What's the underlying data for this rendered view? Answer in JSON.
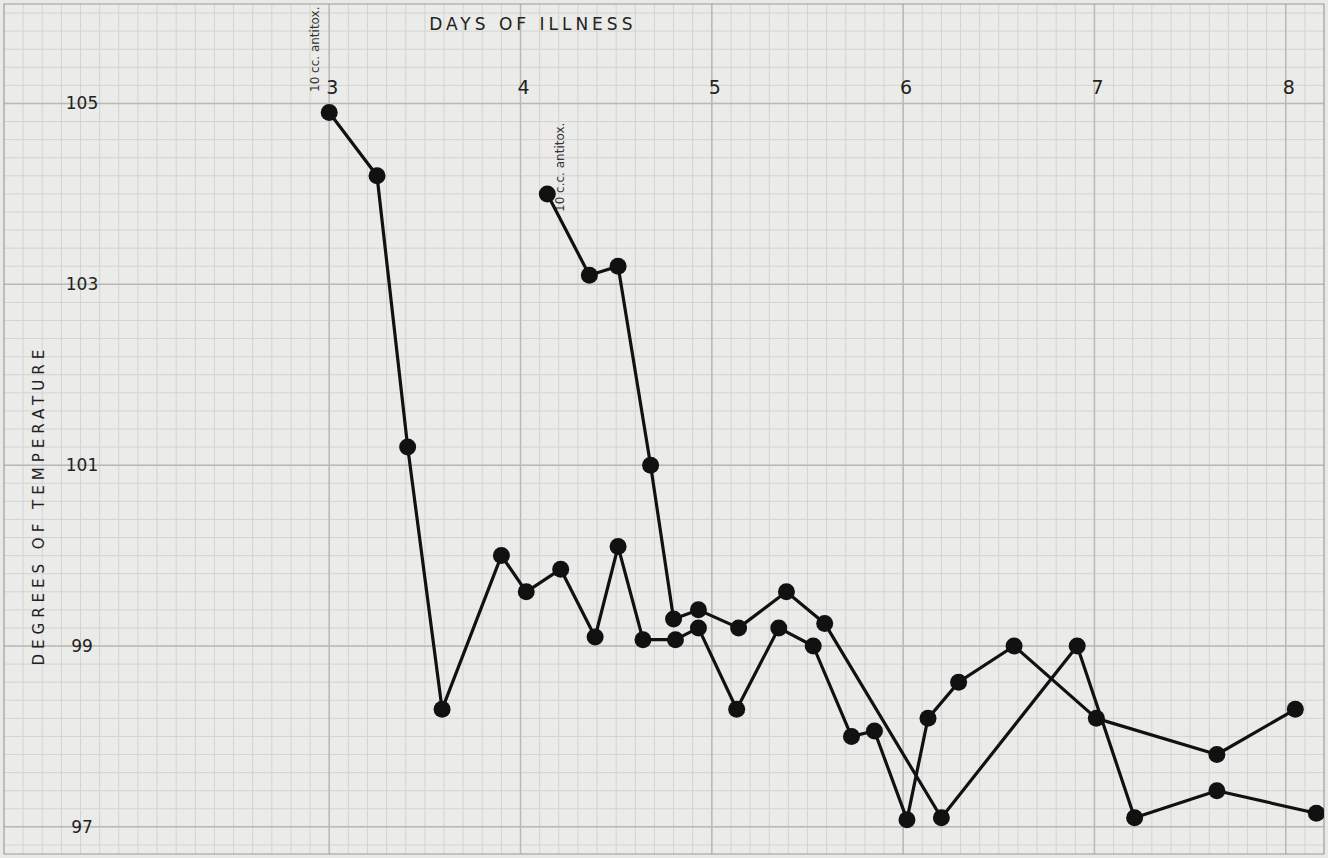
{
  "chart_data": {
    "type": "line",
    "title": "DAYS OF ILLNESS",
    "y_label": "DEGREES OF TEMPERATURE",
    "xlim": [
      1.3,
      8.2
    ],
    "xticks": [
      3,
      4,
      5,
      6,
      7,
      8
    ],
    "ylim": [
      96.7,
      106.1
    ],
    "yticks": [
      97,
      99,
      101,
      103,
      105
    ],
    "grid": true,
    "marker": "circle",
    "annotations": [
      {
        "text": "10 cc. antitox.",
        "x": 3.0
      },
      {
        "text": "10 c.c. antitox.",
        "x": 4.28
      }
    ],
    "series": [
      {
        "color": "#111111",
        "x": [
          3.0,
          3.25,
          3.41,
          3.59,
          3.9,
          4.03,
          4.21,
          4.39,
          4.51,
          4.64,
          4.81,
          4.93,
          5.13,
          5.35,
          5.53,
          5.73,
          5.85,
          6.02,
          6.13,
          6.29,
          6.58,
          7.01,
          7.64,
          8.05
        ],
        "values": [
          104.9,
          104.2,
          101.2,
          98.3,
          100.0,
          99.6,
          99.85,
          99.1,
          100.1,
          99.07,
          99.07,
          99.2,
          98.3,
          99.2,
          99.0,
          98.0,
          98.06,
          97.08,
          98.2,
          98.6,
          99.0,
          98.2,
          97.8,
          98.3
        ]
      },
      {
        "color": "#111111",
        "x": [
          4.14,
          4.36,
          4.51,
          4.68,
          4.8,
          4.93,
          5.14,
          5.39,
          5.59,
          6.2,
          6.91,
          7.21,
          7.64,
          8.16
        ],
        "values": [
          104.0,
          103.1,
          103.2,
          101.0,
          99.3,
          99.4,
          99.2,
          99.6,
          99.25,
          97.1,
          99.0,
          97.1,
          97.4,
          97.15
        ]
      }
    ]
  }
}
